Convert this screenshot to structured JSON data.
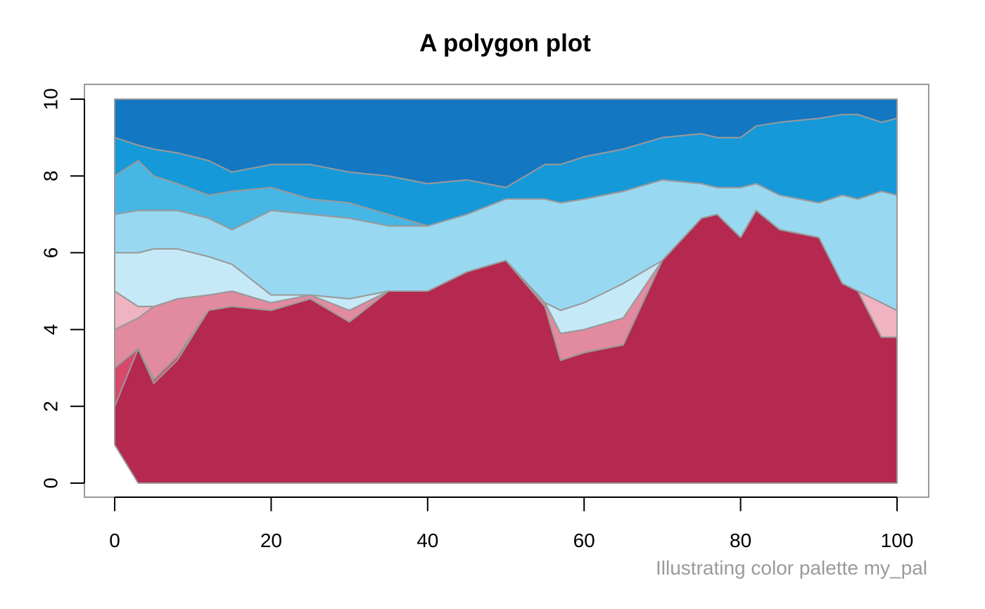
{
  "chart_data": {
    "type": "area",
    "title": "A polygon plot",
    "caption": "Illustrating color palette my_pal",
    "xlabel": "",
    "ylabel": "",
    "xlim": [
      0,
      100
    ],
    "ylim": [
      0,
      10
    ],
    "x_ticks": [
      0,
      20,
      40,
      60,
      80,
      100
    ],
    "y_ticks": [
      0,
      2,
      4,
      6,
      8,
      10
    ],
    "grid": false,
    "legend": "none",
    "colors": [
      "#b5284f",
      "#d6496b",
      "#e28aa0",
      "#efb3c2",
      "#c6e9f7",
      "#99d8f1",
      "#46b6e5",
      "#1699d9",
      "#1377c2"
    ],
    "outline_color": "#999999",
    "frame_color": "#999999",
    "boundaries_x": [
      0,
      3,
      5,
      8,
      12,
      15,
      20,
      25,
      30,
      35,
      40,
      45,
      50,
      55,
      57,
      60,
      65,
      70,
      75,
      77,
      80,
      82,
      85,
      90,
      93,
      95,
      98,
      100
    ],
    "boundaries": [
      [
        1.0,
        0,
        0,
        0,
        0,
        0,
        0,
        0,
        0,
        0,
        0,
        0,
        0,
        0,
        0,
        0,
        0,
        0,
        0,
        0,
        0,
        0,
        0,
        0,
        0,
        0,
        0,
        0
      ],
      [
        2.0,
        3.5,
        2.6,
        3.2,
        4.5,
        4.6,
        4.5,
        4.8,
        4.2,
        5.0,
        5.0,
        5.5,
        5.8,
        4.6,
        3.2,
        3.4,
        3.6,
        5.8,
        6.9,
        7.0,
        6.4,
        7.1,
        6.6,
        6.4,
        5.2,
        5.0,
        3.8,
        3.8
      ],
      [
        3.0,
        3.5,
        2.7,
        3.3,
        4.5,
        4.6,
        4.5,
        4.8,
        4.2,
        5.0,
        5.0,
        5.5,
        5.8,
        4.6,
        3.2,
        3.4,
        3.6,
        5.8,
        6.9,
        7.0,
        6.4,
        7.1,
        6.6,
        6.4,
        5.2,
        5.0,
        3.8,
        3.8
      ],
      [
        4.0,
        4.3,
        4.6,
        4.8,
        4.9,
        5.0,
        4.7,
        4.9,
        4.5,
        5.0,
        5.0,
        5.5,
        5.8,
        4.7,
        3.9,
        4.0,
        4.3,
        5.8,
        6.9,
        7.0,
        6.4,
        7.1,
        6.6,
        6.4,
        5.2,
        5.0,
        3.8,
        3.8
      ],
      [
        5.0,
        4.6,
        4.6,
        4.8,
        4.9,
        5.0,
        4.7,
        4.9,
        4.5,
        5.0,
        5.0,
        5.5,
        5.8,
        4.7,
        3.9,
        4.0,
        4.3,
        5.8,
        6.9,
        7.0,
        6.4,
        7.1,
        6.6,
        6.4,
        5.2,
        5.0,
        4.7,
        4.5
      ],
      [
        6.0,
        6.0,
        6.1,
        6.1,
        5.9,
        5.7,
        4.9,
        4.9,
        4.8,
        5.0,
        5.0,
        5.5,
        5.8,
        4.7,
        4.5,
        4.7,
        5.2,
        5.8,
        6.9,
        7.0,
        6.4,
        7.1,
        6.6,
        6.4,
        5.2,
        5.0,
        4.7,
        4.5
      ],
      [
        7.0,
        7.1,
        7.1,
        7.1,
        6.9,
        6.6,
        7.1,
        7.0,
        6.9,
        6.7,
        6.7,
        7.0,
        7.4,
        7.4,
        7.3,
        7.4,
        7.6,
        7.9,
        7.8,
        7.7,
        7.7,
        7.8,
        7.5,
        7.3,
        7.5,
        7.4,
        7.6,
        7.5
      ],
      [
        8.0,
        8.4,
        8.0,
        7.8,
        7.5,
        7.6,
        7.7,
        7.4,
        7.3,
        7.0,
        6.7,
        7.0,
        7.4,
        7.4,
        7.3,
        7.4,
        7.6,
        7.9,
        7.8,
        7.7,
        7.7,
        7.8,
        7.5,
        7.3,
        7.5,
        7.4,
        7.6,
        7.5
      ],
      [
        9.0,
        8.8,
        8.7,
        8.6,
        8.4,
        8.1,
        8.3,
        8.3,
        8.1,
        8.0,
        7.8,
        7.9,
        7.7,
        8.3,
        8.3,
        8.5,
        8.7,
        9.0,
        9.1,
        9.0,
        9.0,
        9.3,
        9.4,
        9.5,
        9.6,
        9.6,
        9.4,
        9.5
      ],
      [
        10,
        10,
        10,
        10,
        10,
        10,
        10,
        10,
        10,
        10,
        10,
        10,
        10,
        10,
        10,
        10,
        10,
        10,
        10,
        10,
        10,
        10,
        10,
        10,
        10,
        10,
        10,
        10
      ]
    ]
  }
}
